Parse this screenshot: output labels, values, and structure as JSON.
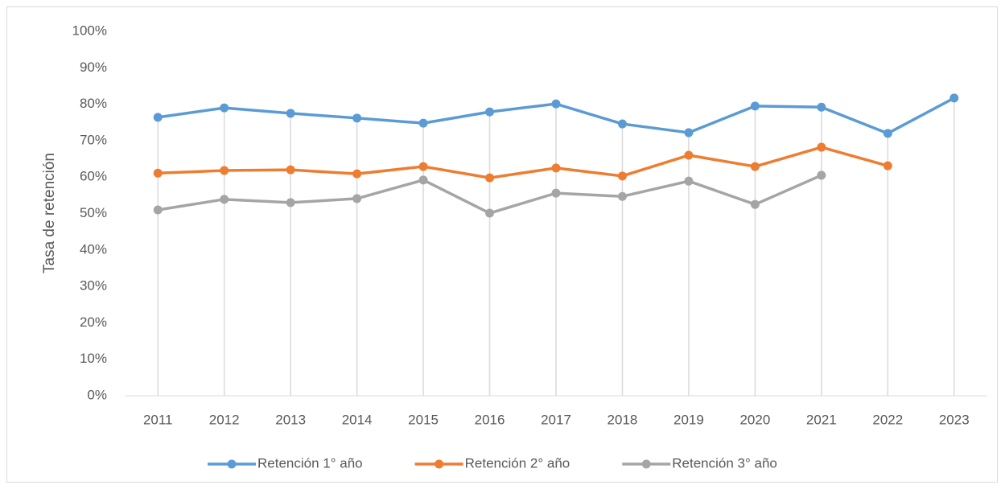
{
  "chart_data": {
    "type": "line",
    "y_axis_label": "Tasa de retención",
    "categories": [
      "2011",
      "2012",
      "2013",
      "2014",
      "2015",
      "2016",
      "2017",
      "2018",
      "2019",
      "2020",
      "2021",
      "2022",
      "2023"
    ],
    "series": [
      {
        "name": "Retención 1° año",
        "color": "#5b9bd5",
        "values": [
          76.4,
          79.0,
          77.5,
          76.2,
          74.8,
          77.9,
          80.1,
          74.6,
          72.2,
          79.5,
          79.2,
          72.0,
          81.7
        ]
      },
      {
        "name": "Retención 2° año",
        "color": "#ed7d31",
        "values": [
          61.1,
          61.8,
          62.0,
          60.9,
          62.9,
          59.8,
          62.5,
          60.3,
          66.0,
          62.9,
          68.2,
          63.1,
          null
        ]
      },
      {
        "name": "Retención 3° año",
        "color": "#a5a5a5",
        "values": [
          51.0,
          53.9,
          53.0,
          54.1,
          59.2,
          50.1,
          55.6,
          54.7,
          58.9,
          52.5,
          60.5,
          null,
          null
        ]
      }
    ],
    "ylim": [
      0,
      100
    ],
    "yticks": [
      {
        "value": 0,
        "label": "0%"
      },
      {
        "value": 10,
        "label": "10%"
      },
      {
        "value": 20,
        "label": "20%"
      },
      {
        "value": 30,
        "label": "30%"
      },
      {
        "value": 40,
        "label": "40%"
      },
      {
        "value": 50,
        "label": "50%"
      },
      {
        "value": 60,
        "label": "60%"
      },
      {
        "value": 70,
        "label": "70%"
      },
      {
        "value": 80,
        "label": "80%"
      },
      {
        "value": 90,
        "label": "90%"
      },
      {
        "value": 100,
        "label": "100%"
      }
    ],
    "drop_lines": true,
    "legend": "bottom"
  }
}
